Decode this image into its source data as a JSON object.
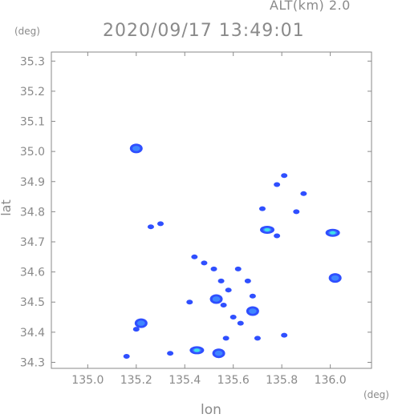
{
  "header": {
    "altitude_label": "ALT(km) 2.0",
    "timestamp": "2020/09/17 13:49:01"
  },
  "chart_data": {
    "type": "scatter",
    "title": "2020/09/17 13:49:01",
    "subtitle": "ALT(km) 2.0",
    "xlabel": "lon",
    "ylabel": "lat",
    "x_unit": "(deg)",
    "y_unit": "(deg)",
    "xlim": [
      134.85,
      136.17
    ],
    "ylim": [
      34.28,
      35.33
    ],
    "x_ticks": [
      "135.0",
      "135.2",
      "135.4",
      "135.6",
      "135.8",
      "136.0"
    ],
    "y_ticks": [
      "35.3",
      "35.2",
      "35.1",
      "35.0",
      "34.9",
      "34.8",
      "34.7",
      "34.6",
      "34.5",
      "34.4",
      "34.3"
    ],
    "grid": false,
    "colors": {
      "axes": "#8a8a8a",
      "echo_weak": "#2f4fff",
      "echo_mid": "#3f86ff",
      "echo_strong": "#3fe0e8"
    },
    "echoes": [
      {
        "x": 135.2,
        "y": 35.01,
        "level": 2
      },
      {
        "x": 135.22,
        "y": 34.43,
        "level": 2
      },
      {
        "x": 135.2,
        "y": 34.41,
        "level": 1
      },
      {
        "x": 135.16,
        "y": 34.32,
        "level": 1
      },
      {
        "x": 135.34,
        "y": 34.33,
        "level": 1
      },
      {
        "x": 135.45,
        "y": 34.34,
        "level": 3
      },
      {
        "x": 135.54,
        "y": 34.33,
        "level": 2
      },
      {
        "x": 135.57,
        "y": 34.38,
        "level": 1
      },
      {
        "x": 135.3,
        "y": 34.76,
        "level": 1
      },
      {
        "x": 135.26,
        "y": 34.75,
        "level": 1
      },
      {
        "x": 135.42,
        "y": 34.5,
        "level": 1
      },
      {
        "x": 135.44,
        "y": 34.65,
        "level": 1
      },
      {
        "x": 135.48,
        "y": 34.63,
        "level": 1
      },
      {
        "x": 135.52,
        "y": 34.61,
        "level": 1
      },
      {
        "x": 135.55,
        "y": 34.57,
        "level": 1
      },
      {
        "x": 135.58,
        "y": 34.54,
        "level": 1
      },
      {
        "x": 135.53,
        "y": 34.51,
        "level": 2
      },
      {
        "x": 135.56,
        "y": 34.49,
        "level": 1
      },
      {
        "x": 135.6,
        "y": 34.45,
        "level": 1
      },
      {
        "x": 135.62,
        "y": 34.61,
        "level": 1
      },
      {
        "x": 135.66,
        "y": 34.57,
        "level": 1
      },
      {
        "x": 135.68,
        "y": 34.47,
        "level": 2
      },
      {
        "x": 135.63,
        "y": 34.43,
        "level": 1
      },
      {
        "x": 135.68,
        "y": 34.52,
        "level": 1
      },
      {
        "x": 135.74,
        "y": 34.74,
        "level": 3
      },
      {
        "x": 135.78,
        "y": 34.72,
        "level": 1
      },
      {
        "x": 135.78,
        "y": 34.89,
        "level": 1
      },
      {
        "x": 135.81,
        "y": 34.92,
        "level": 1
      },
      {
        "x": 135.89,
        "y": 34.86,
        "level": 1
      },
      {
        "x": 135.86,
        "y": 34.8,
        "level": 1
      },
      {
        "x": 135.72,
        "y": 34.81,
        "level": 1
      },
      {
        "x": 136.01,
        "y": 34.73,
        "level": 3
      },
      {
        "x": 136.02,
        "y": 34.58,
        "level": 2
      },
      {
        "x": 135.81,
        "y": 34.39,
        "level": 1
      },
      {
        "x": 135.7,
        "y": 34.38,
        "level": 1
      }
    ]
  }
}
